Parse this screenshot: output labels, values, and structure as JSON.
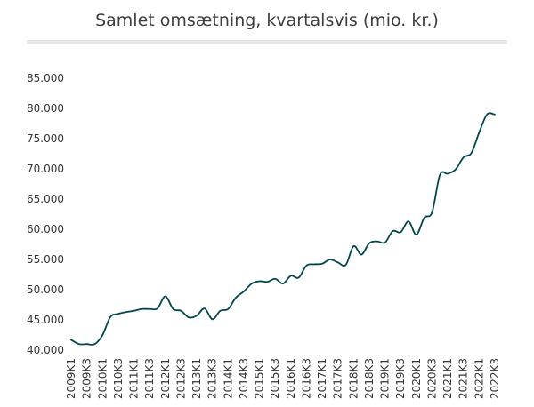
{
  "chart_data": {
    "type": "line",
    "title": "Samlet omsætning, kvartalsvis (mio. kr.)",
    "xlabel": "",
    "ylabel": "",
    "ylim": [
      40000,
      85000
    ],
    "yticks": [
      40000,
      45000,
      50000,
      55000,
      60000,
      65000,
      70000,
      75000,
      80000,
      85000
    ],
    "ytick_labels": [
      "40.000",
      "45.000",
      "50.000",
      "55.000",
      "60.000",
      "65.000",
      "70.000",
      "75.000",
      "80.000",
      "85.000"
    ],
    "grid": false,
    "line_color": "#00464b",
    "rule_color": "#e6e6e6",
    "x": [
      "2009K1",
      "2009K2",
      "2009K3",
      "2009K4",
      "2010K1",
      "2010K2",
      "2010K3",
      "2010K4",
      "2011K1",
      "2011K2",
      "2011K3",
      "2011K4",
      "2012K1",
      "2012K2",
      "2012K3",
      "2012K4",
      "2013K1",
      "2013K2",
      "2013K3",
      "2013K4",
      "2014K1",
      "2014K2",
      "2014K3",
      "2014K4",
      "2015K1",
      "2015K2",
      "2015K3",
      "2015K4",
      "2016K1",
      "2016K2",
      "2016K3",
      "2016K4",
      "2017K1",
      "2017K2",
      "2017K3",
      "2017K4",
      "2018K1",
      "2018K2",
      "2018K3",
      "2018K4",
      "2019K1",
      "2019K2",
      "2019K3",
      "2019K4",
      "2020K1",
      "2020K2",
      "2020K3",
      "2020K4",
      "2021K1",
      "2021K2",
      "2021K3",
      "2021K4",
      "2022K1",
      "2022K2",
      "2022K3"
    ],
    "xtick_labels": [
      "2009K1",
      "2009K3",
      "2010K1",
      "2010K3",
      "2011K1",
      "2011K3",
      "2012K1",
      "2012K3",
      "2013K1",
      "2013K3",
      "2014K1",
      "2014K3",
      "2015K1",
      "2015K3",
      "2016K1",
      "2016K3",
      "2017K1",
      "2017K3",
      "2018K1",
      "2018K3",
      "2019K1",
      "2019K3",
      "2020K1",
      "2020K3",
      "2021K1",
      "2021K3",
      "2022K1",
      "2022K3"
    ],
    "series": [
      {
        "name": "Samlet omsætning",
        "values": [
          41700,
          41000,
          41000,
          41000,
          42500,
          45500,
          46000,
          46300,
          46500,
          46800,
          46800,
          46900,
          48900,
          46800,
          46500,
          45400,
          45700,
          46900,
          45100,
          46500,
          46800,
          48700,
          49700,
          51000,
          51400,
          51300,
          51800,
          51000,
          52300,
          52000,
          54000,
          54200,
          54300,
          55000,
          54500,
          54100,
          57200,
          55800,
          57700,
          58000,
          57800,
          59700,
          59500,
          61300,
          59100,
          61900,
          62800,
          69000,
          69200,
          69900,
          71900,
          72600,
          76000,
          79000,
          79000
        ]
      }
    ]
  }
}
